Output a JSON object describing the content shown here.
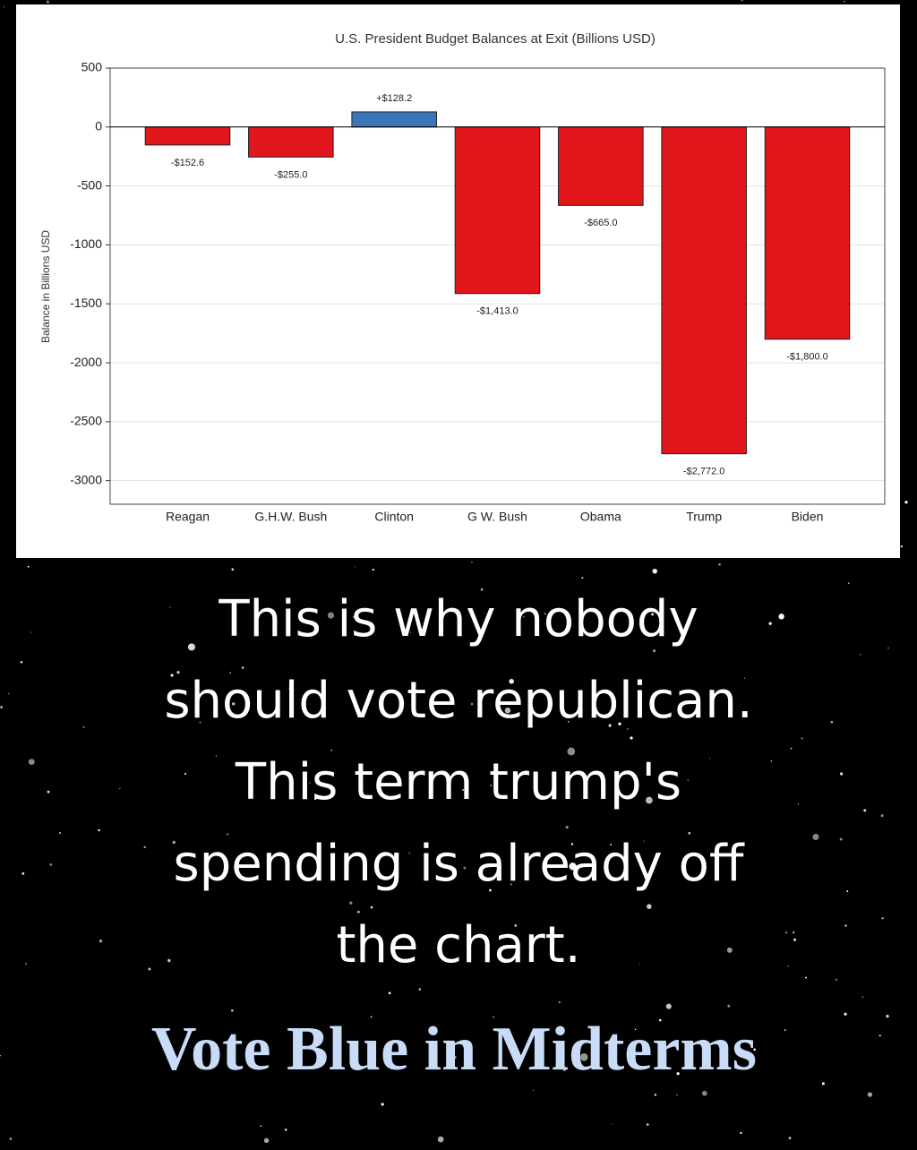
{
  "chart_data": {
    "type": "bar",
    "title": "U.S. President Budget Balances at Exit (Billions USD)",
    "y_label": "Balance in Billions USD",
    "categories": [
      "Reagan",
      "G.H.W. Bush",
      "Clinton",
      "G W. Bush",
      "Obama",
      "Trump",
      "Biden"
    ],
    "values": [
      -152.6,
      -255.0,
      128.2,
      -1413.0,
      -665.0,
      -2772.0,
      -1800.0
    ],
    "value_labels": [
      "-$152.6",
      "-$255.0",
      "+$128.2",
      "-$1,413.0",
      "-$665.0",
      "-$2,772.0",
      "-$1,800.0"
    ],
    "colors": [
      "#e0161b",
      "#e0161b",
      "#3a75b8",
      "#e0161b",
      "#e0161b",
      "#e0161b",
      "#e0161b"
    ],
    "ylim": [
      -3200,
      500
    ],
    "yticks": [
      500,
      0,
      -500,
      -1000,
      -1500,
      -2000,
      -2500,
      -3000
    ],
    "grid": true
  },
  "caption": {
    "lines": [
      "This is why nobody",
      "should vote republican.",
      "This term trump's",
      "spending is already off",
      "the chart."
    ],
    "slogan": "Vote Blue in Midterms"
  }
}
